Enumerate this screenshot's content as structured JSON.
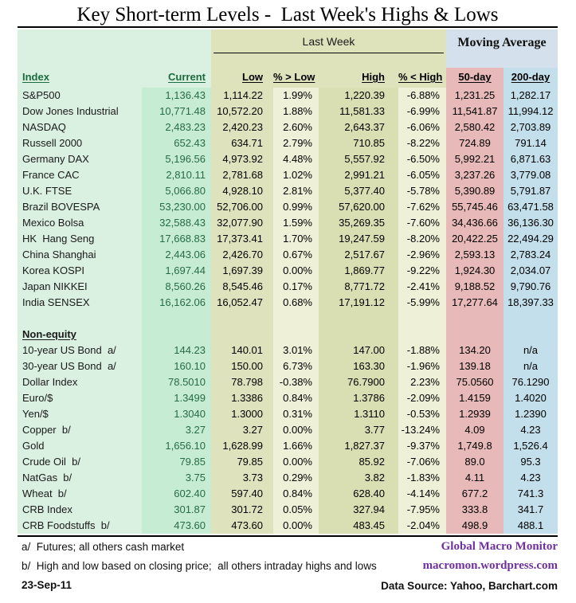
{
  "chart_data": {
    "type": "table",
    "title": "Key Short-term Levels -  Last Week's Highs & Lows",
    "column_groups": [
      {
        "label": "",
        "span": [
          "Index",
          "Current"
        ]
      },
      {
        "label": "Last Week",
        "span": [
          "Low",
          "% > Low",
          "High",
          "% < High"
        ]
      },
      {
        "label": "Moving Average",
        "span": [
          "50-day",
          "200-day"
        ]
      }
    ],
    "columns": [
      "Index",
      "Current",
      "Low",
      "% > Low",
      "High",
      "% < High",
      "50-day",
      "200-day"
    ],
    "rows": [
      {
        "type": "data",
        "name": "S&P500",
        "current": "1,136.43",
        "low": "1,114.22",
        "pct_above_low": "1.99%",
        "high": "1,220.39",
        "pct_below_high": "-6.88%",
        "ma_50day": "1,231.25",
        "ma_200day": "1,282.17"
      },
      {
        "type": "data",
        "name": "Dow Jones Industrial",
        "current": "10,771.48",
        "low": "10,572.20",
        "pct_above_low": "1.88%",
        "high": "11,581.33",
        "pct_below_high": "-6.99%",
        "ma_50day": "11,541.87",
        "ma_200day": "11,994.12"
      },
      {
        "type": "data",
        "name": "NASDAQ",
        "current": "2,483.23",
        "low": "2,420.23",
        "pct_above_low": "2.60%",
        "high": "2,643.37",
        "pct_below_high": "-6.06%",
        "ma_50day": "2,580.42",
        "ma_200day": "2,703.89"
      },
      {
        "type": "data",
        "name": "Russell 2000",
        "current": "652.43",
        "low": "634.71",
        "pct_above_low": "2.79%",
        "high": "710.85",
        "pct_below_high": "-8.22%",
        "ma_50day": "724.89",
        "ma_200day": "791.14"
      },
      {
        "type": "data",
        "name": "Germany DAX",
        "current": "5,196.56",
        "low": "4,973.92",
        "pct_above_low": "4.48%",
        "high": "5,557.92",
        "pct_below_high": "-6.50%",
        "ma_50day": "5,992.21",
        "ma_200day": "6,871.63"
      },
      {
        "type": "data",
        "name": "France CAC",
        "current": "2,810.11",
        "low": "2,781.68",
        "pct_above_low": "1.02%",
        "high": "2,991.21",
        "pct_below_high": "-6.05%",
        "ma_50day": "3,237.26",
        "ma_200day": "3,779.08"
      },
      {
        "type": "data",
        "name": "U.K. FTSE",
        "current": "5,066.80",
        "low": "4,928.10",
        "pct_above_low": "2.81%",
        "high": "5,377.40",
        "pct_below_high": "-5.78%",
        "ma_50day": "5,390.89",
        "ma_200day": "5,791.87"
      },
      {
        "type": "data",
        "name": "Brazil BOVESPA",
        "current": "53,230.00",
        "low": "52,706.00",
        "pct_above_low": "0.99%",
        "high": "57,620.00",
        "pct_below_high": "-7.62%",
        "ma_50day": "55,745.46",
        "ma_200day": "63,471.58"
      },
      {
        "type": "data",
        "name": "Mexico Bolsa",
        "current": "32,588.43",
        "low": "32,077.90",
        "pct_above_low": "1.59%",
        "high": "35,269.35",
        "pct_below_high": "-7.60%",
        "ma_50day": "34,436.66",
        "ma_200day": "36,136.30"
      },
      {
        "type": "data",
        "name": "HK  Hang Seng",
        "current": "17,668.83",
        "low": "17,373.41",
        "pct_above_low": "1.70%",
        "high": "19,247.59",
        "pct_below_high": "-8.20%",
        "ma_50day": "20,422.25",
        "ma_200day": "22,494.29"
      },
      {
        "type": "data",
        "name": "China Shanghai",
        "current": "2,443.06",
        "low": "2,426.70",
        "pct_above_low": "0.67%",
        "high": "2,517.67",
        "pct_below_high": "-2.96%",
        "ma_50day": "2,593.13",
        "ma_200day": "2,783.24"
      },
      {
        "type": "data",
        "name": "Korea KOSPI",
        "current": "1,697.44",
        "low": "1,697.39",
        "pct_above_low": "0.00%",
        "high": "1,869.77",
        "pct_below_high": "-9.22%",
        "ma_50day": "1,924.30",
        "ma_200day": "2,034.07"
      },
      {
        "type": "data",
        "name": "Japan NIKKEI",
        "current": "8,560.26",
        "low": "8,545.46",
        "pct_above_low": "0.17%",
        "high": "8,771.72",
        "pct_below_high": "-2.41%",
        "ma_50day": "9,188.52",
        "ma_200day": "9,790.76"
      },
      {
        "type": "data",
        "name": "India SENSEX",
        "current": "16,162.06",
        "low": "16,052.47",
        "pct_above_low": "0.68%",
        "high": "17,191.12",
        "pct_below_high": "-5.99%",
        "ma_50day": "17,277.64",
        "ma_200day": "18,397.33"
      },
      {
        "type": "blank"
      },
      {
        "type": "section",
        "name": "Non-equity"
      },
      {
        "type": "data",
        "name": "10-year US Bond  a/",
        "current": "144.23",
        "low": "140.01",
        "pct_above_low": "3.01%",
        "high": "147.00",
        "pct_below_high": "-1.88%",
        "ma_50day": "134.20",
        "ma_200day": "n/a"
      },
      {
        "type": "data",
        "name": "30-year US Bond  a/",
        "current": "160.10",
        "low": "150.00",
        "pct_above_low": "6.73%",
        "high": "163.30",
        "pct_below_high": "-1.96%",
        "ma_50day": "139.18",
        "ma_200day": "n/a"
      },
      {
        "type": "data",
        "name": "Dollar Index",
        "current": "78.5010",
        "low": "78.798",
        "pct_above_low": "-0.38%",
        "high": "76.7900",
        "pct_below_high": "2.23%",
        "ma_50day": "75.0560",
        "ma_200day": "76.1290"
      },
      {
        "type": "data",
        "name": "Euro/$",
        "current": "1.3499",
        "low": "1.3386",
        "pct_above_low": "0.84%",
        "high": "1.3786",
        "pct_below_high": "-2.09%",
        "ma_50day": "1.4159",
        "ma_200day": "1.4020"
      },
      {
        "type": "data",
        "name": "Yen/$",
        "current": "1.3040",
        "low": "1.3000",
        "pct_above_low": "0.31%",
        "high": "1.3110",
        "pct_below_high": "-0.53%",
        "ma_50day": "1.2939",
        "ma_200day": "1.2390"
      },
      {
        "type": "data",
        "name": "Copper  b/",
        "current": "3.27",
        "low": "3.27",
        "pct_above_low": "0.00%",
        "high": "3.77",
        "pct_below_high": "-13.24%",
        "ma_50day": "4.09",
        "ma_200day": "4.23"
      },
      {
        "type": "data",
        "name": "Gold",
        "current": "1,656.10",
        "low": "1,628.99",
        "pct_above_low": "1.66%",
        "high": "1,827.37",
        "pct_below_high": "-9.37%",
        "ma_50day": "1,749.8",
        "ma_200day": "1,526.4"
      },
      {
        "type": "data",
        "name": "Crude Oil  b/",
        "current": "79.85",
        "low": "79.85",
        "pct_above_low": "0.00%",
        "high": "85.92",
        "pct_below_high": "-7.06%",
        "ma_50day": "89.0",
        "ma_200day": "95.3"
      },
      {
        "type": "data",
        "name": "NatGas  b/",
        "current": "3.75",
        "low": "3.73",
        "pct_above_low": "0.29%",
        "high": "3.82",
        "pct_below_high": "-1.83%",
        "ma_50day": "4.11",
        "ma_200day": "4.23"
      },
      {
        "type": "data",
        "name": "Wheat  b/",
        "current": "602.40",
        "low": "597.40",
        "pct_above_low": "0.84%",
        "high": "628.40",
        "pct_below_high": "-4.14%",
        "ma_50day": "677.2",
        "ma_200day": "741.3"
      },
      {
        "type": "data",
        "name": "CRB Index",
        "current": "301.87",
        "low": "301.72",
        "pct_above_low": "0.05%",
        "high": "327.94",
        "pct_below_high": "-7.95%",
        "ma_50day": "333.8",
        "ma_200day": "341.7"
      },
      {
        "type": "data",
        "name": "CRB Foodstuffs  b/",
        "current": "473.60",
        "low": "473.60",
        "pct_above_low": "0.00%",
        "high": "483.45",
        "pct_below_high": "-2.04%",
        "ma_50day": "498.9",
        "ma_200day": "488.1"
      }
    ]
  },
  "footer": {
    "note_a": "a/  Futures; all others cash market",
    "note_b": "b/  High and low based on closing price;  all others intraday highs and lows",
    "date": "23-Sep-11",
    "brand_line1": "Global Macro Monitor",
    "brand_line2": "macromon.wordpress.com",
    "data_source": "Data Source: Yahoo, Barchart.com"
  },
  "colors": {
    "index_col_bg": "#daf0e0",
    "current_col_bg": "#c6ecd4",
    "low_col_bg": "#dee3bd",
    "high_col_bg": "#d9dfb2",
    "pct_col_bg": "#eef0d8",
    "ma50_col_bg": "#e7b9b8",
    "ma200_col_bg": "#c2dfeb",
    "last_week_band_bg": "#dfe3bc",
    "moving_average_band_bg": "#d4e1ed",
    "current_value_text": "#266b45",
    "index_header_text": "#1d6b40",
    "brand_purple": "#7030a0"
  }
}
